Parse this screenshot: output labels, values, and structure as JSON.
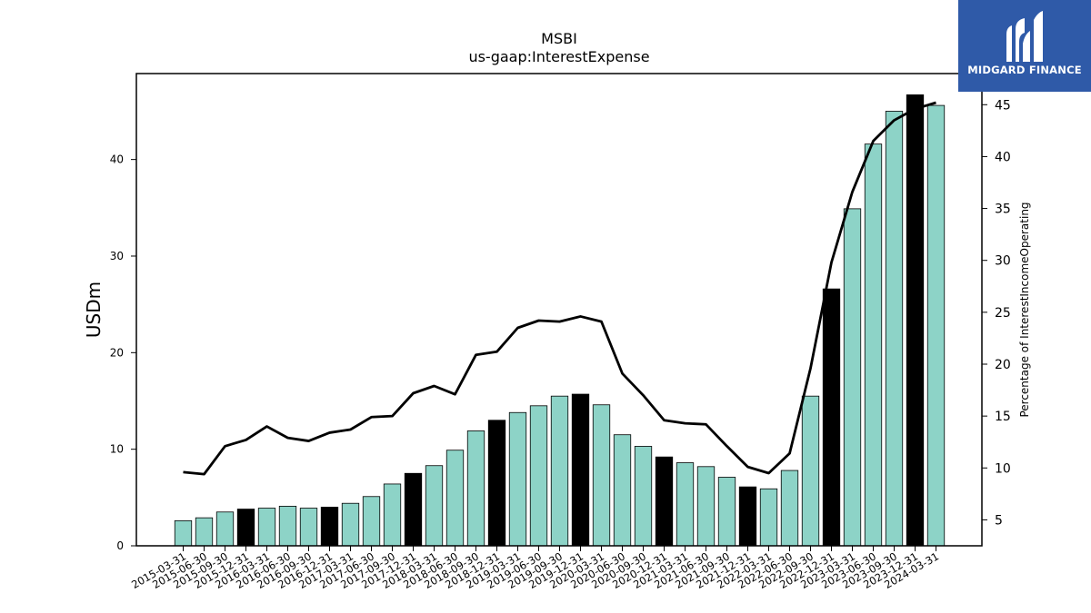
{
  "chart_data": {
    "type": "bar",
    "title": "MSBI",
    "subtitle": "us-gaap:InterestExpense",
    "ylabel": "USDm",
    "ylabel_right": "Percentage of InterestIncomeOperating",
    "ylim": [
      0,
      48.9
    ],
    "ylim_right": [
      2.5,
      48.0
    ],
    "yticks": [
      0,
      10,
      20,
      30,
      40
    ],
    "yticks_right": [
      5,
      10,
      15,
      20,
      25,
      30,
      35,
      40,
      45
    ],
    "categories": [
      "2015-03-31",
      "2015-06-30",
      "2015-09-30",
      "2015-12-31",
      "2016-03-31",
      "2016-06-30",
      "2016-09-30",
      "2016-12-31",
      "2017-03-31",
      "2017-06-30",
      "2017-09-30",
      "2017-12-31",
      "2018-03-31",
      "2018-06-30",
      "2018-09-30",
      "2018-12-31",
      "2019-03-31",
      "2019-06-30",
      "2019-09-30",
      "2019-12-31",
      "2020-03-31",
      "2020-06-30",
      "2020-09-30",
      "2020-12-31",
      "2021-03-31",
      "2021-06-30",
      "2021-09-30",
      "2021-12-31",
      "2022-03-31",
      "2022-06-30",
      "2022-09-30",
      "2022-12-31",
      "2023-03-31",
      "2023-06-30",
      "2023-09-30",
      "2023-12-31",
      "2024-03-31"
    ],
    "series": [
      {
        "type": "bar",
        "values": [
          2.6,
          2.9,
          3.5,
          3.8,
          3.9,
          4.1,
          3.9,
          4.0,
          4.4,
          5.1,
          6.4,
          7.5,
          8.3,
          9.9,
          11.9,
          13.0,
          13.8,
          14.5,
          15.5,
          15.7,
          14.6,
          11.5,
          10.3,
          9.2,
          8.6,
          8.2,
          7.1,
          6.1,
          5.9,
          7.8,
          15.5,
          26.6,
          34.9,
          41.6,
          45.0,
          46.7,
          45.6
        ],
        "colors": [
          "#8dd3c7",
          "#8dd3c7",
          "#8dd3c7",
          "#000000",
          "#8dd3c7",
          "#8dd3c7",
          "#8dd3c7",
          "#000000",
          "#8dd3c7",
          "#8dd3c7",
          "#8dd3c7",
          "#000000",
          "#8dd3c7",
          "#8dd3c7",
          "#8dd3c7",
          "#000000",
          "#8dd3c7",
          "#8dd3c7",
          "#8dd3c7",
          "#000000",
          "#8dd3c7",
          "#8dd3c7",
          "#8dd3c7",
          "#000000",
          "#8dd3c7",
          "#8dd3c7",
          "#8dd3c7",
          "#000000",
          "#8dd3c7",
          "#8dd3c7",
          "#8dd3c7",
          "#000000",
          "#8dd3c7",
          "#8dd3c7",
          "#8dd3c7",
          "#000000",
          "#8dd3c7"
        ]
      },
      {
        "type": "line",
        "axis": "right",
        "color": "#000000",
        "values": [
          9.6,
          9.4,
          12.1,
          12.7,
          14.0,
          12.9,
          12.6,
          13.4,
          13.7,
          14.9,
          15.0,
          17.2,
          17.9,
          17.1,
          20.9,
          21.2,
          23.5,
          24.2,
          24.1,
          24.6,
          24.1,
          19.1,
          17.0,
          14.6,
          14.3,
          14.2,
          12.1,
          10.1,
          9.5,
          11.4,
          19.6,
          29.8,
          36.6,
          41.5,
          43.5,
          44.6,
          45.2
        ]
      }
    ],
    "grid": false,
    "legend": "none"
  },
  "logo": {
    "text": "MIDGARD FINANCE",
    "background": "#2f5aa8"
  }
}
